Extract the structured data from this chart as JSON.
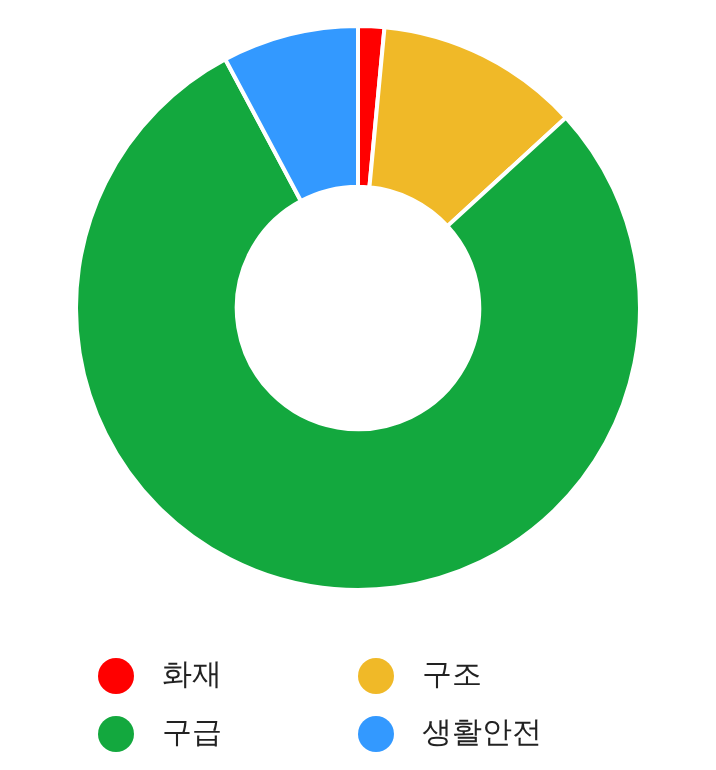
{
  "chart_data": {
    "type": "donut",
    "categories": [
      "화재",
      "구조",
      "구급",
      "생활안전"
    ],
    "values": [
      1.5,
      11.7,
      79,
      7.8
    ],
    "colors": [
      "#ff0000",
      "#f0b928",
      "#13a83e",
      "#3399ff"
    ],
    "legend": "bottom"
  }
}
